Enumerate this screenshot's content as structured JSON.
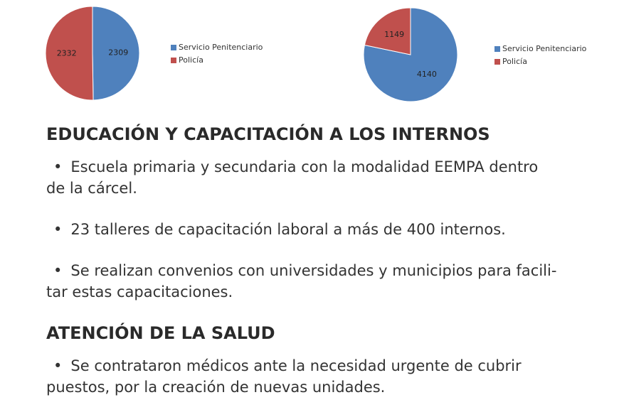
{
  "chart_data": [
    {
      "type": "pie",
      "categories": [
        "Servicio Penitenciario",
        "Policía"
      ],
      "values": [
        2309,
        2332
      ],
      "colors": [
        "#4f81bd",
        "#c0504d"
      ]
    },
    {
      "type": "pie",
      "categories": [
        "Servicio Penitenciario",
        "Policía"
      ],
      "values": [
        4140,
        1149
      ],
      "colors": [
        "#4f81bd",
        "#c0504d"
      ]
    }
  ],
  "sections": [
    {
      "title": "EDUCACIÓN Y CAPACITACIÓN A LOS INTERNOS",
      "items": [
        {
          "lines": [
            "Escuela primaria y secundaria con la modalidad EEMPA dentro",
            "de la cárcel."
          ]
        },
        {
          "lines": [
            "23 talleres de capacitación laboral a más de 400 internos."
          ]
        },
        {
          "lines": [
            "Se realizan convenios con universidades y municipios para facili-",
            "tar estas capacitaciones."
          ]
        }
      ]
    },
    {
      "title": "ATENCIÓN DE LA SALUD",
      "items": [
        {
          "lines": [
            "Se contrataron médicos ante la necesidad urgente de cubrir",
            "puestos, por la creación de nuevas unidades."
          ]
        }
      ]
    }
  ]
}
